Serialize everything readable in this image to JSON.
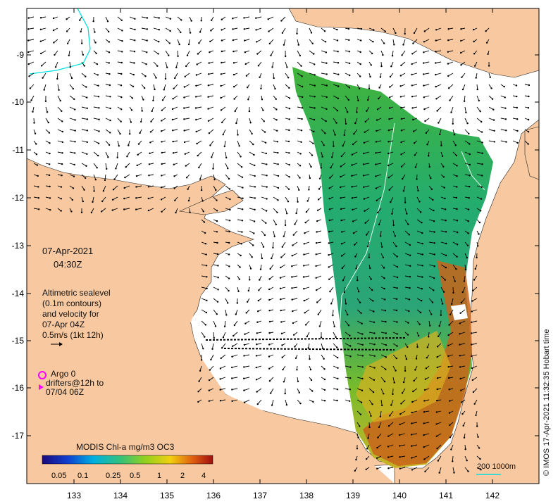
{
  "map": {
    "date": "07-Apr-2021",
    "time": "04:30Z",
    "description": [
      "Altimetric sealevel",
      "(0.1m contours)",
      "and velocity for",
      "07-Apr 04Z",
      "0.5m/s (1kt 12h)"
    ],
    "argo_label": "Argo 0",
    "drifters": [
      "drifters@12h to",
      "07/04 06Z"
    ],
    "colorbar_title": "MODIS Chl-a mg/m3 OC3",
    "colorbar_ticks": [
      "0.05",
      "0.1",
      "0.25",
      "0.5",
      "1",
      "2",
      "4"
    ],
    "scale_label": "200  1000m",
    "credit": "© IMOS 17-Apr-2021 11:32:35 Hobart time",
    "lat_labels": [
      "-9",
      "-10",
      "-11",
      "-12",
      "-13",
      "-14",
      "-15",
      "-16",
      "-17"
    ],
    "lon_labels": [
      "133",
      "134",
      "135",
      "136",
      "137",
      "138",
      "139",
      "140",
      "141",
      "142"
    ],
    "colors": {
      "land": "#f8c9a0",
      "contour": "#00e0e0",
      "argo": "#ff00ff",
      "chl_low": "#2ea12e",
      "chl_mid": "#12a070",
      "chl_high": "#c46a10"
    },
    "icons": [
      "velocity-arrow-icon",
      "argo-float-icon",
      "drifter-icon"
    ]
  }
}
